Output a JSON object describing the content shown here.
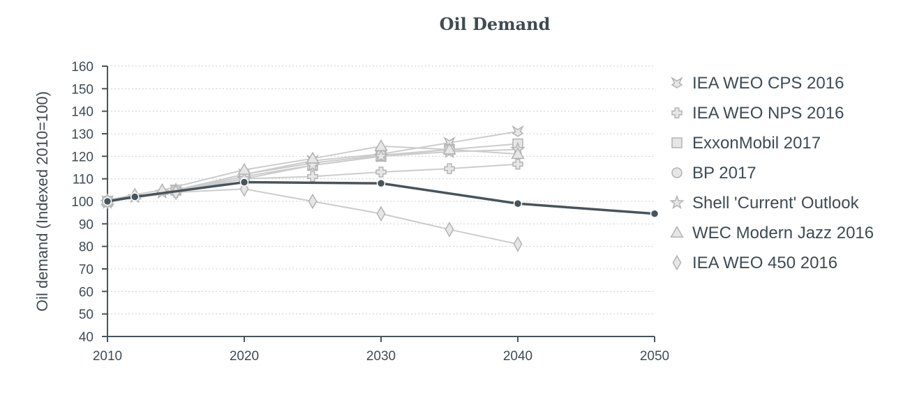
{
  "chart_data": {
    "type": "line",
    "title": "Oil Demand",
    "xlabel": "",
    "ylabel": "Oil demand (Indexed 2010=100)",
    "xlim": [
      2010,
      2050
    ],
    "ylim": [
      40,
      160
    ],
    "x_ticks": [
      2010,
      2020,
      2030,
      2040,
      2050
    ],
    "y_ticks": [
      40,
      50,
      60,
      70,
      80,
      90,
      100,
      110,
      120,
      130,
      140,
      150,
      160
    ],
    "grid": "horizontal dotted",
    "legend_position": "right",
    "colors": {
      "scenario": "#cccccc",
      "scenario_stroke": "#b3b3b3",
      "highlight": "#47545c",
      "axis": "#47545c",
      "grid": "#cfcfcf"
    },
    "series": [
      {
        "name": "IEA WEO CPS 2016",
        "marker": "tie",
        "x": [
          2010,
          2015,
          2020,
          2025,
          2030,
          2035,
          2040
        ],
        "y": [
          100,
          105,
          112,
          118,
          121,
          126,
          131
        ]
      },
      {
        "name": "IEA WEO NPS 2016",
        "marker": "cross",
        "x": [
          2010,
          2015,
          2020,
          2025,
          2030,
          2035,
          2040
        ],
        "y": [
          100,
          104,
          110,
          111,
          113,
          114.5,
          116.5
        ]
      },
      {
        "name": "ExxonMobil 2017",
        "marker": "square",
        "x": [
          2010,
          2015,
          2020,
          2025,
          2030,
          2035,
          2040
        ],
        "y": [
          100,
          105,
          111,
          116,
          120,
          123,
          125.5
        ]
      },
      {
        "name": "BP 2017",
        "marker": "circle",
        "x": [
          2010,
          2015,
          2020,
          2025,
          2030,
          2035
        ],
        "y": [
          100,
          105,
          112,
          117,
          120.5,
          123
        ]
      },
      {
        "name": "Shell 'Current' Outlook",
        "marker": "star",
        "x": [
          2010,
          2012,
          2014,
          2015,
          2020,
          2025,
          2030,
          2035,
          2040
        ],
        "y": [
          99.5,
          102,
          104,
          105,
          110,
          116,
          120,
          122,
          123
        ]
      },
      {
        "name": "WEC Modern Jazz 2016",
        "marker": "triangle",
        "x": [
          2010,
          2012,
          2014,
          2020,
          2025,
          2030,
          2035,
          2040
        ],
        "y": [
          100.5,
          103,
          105,
          114,
          119,
          124.5,
          123,
          121
        ]
      },
      {
        "name": "IEA WEO 450 2016",
        "marker": "diamond",
        "x": [
          2010,
          2015,
          2020,
          2025,
          2030,
          2035,
          2040
        ],
        "y": [
          100,
          104,
          105.5,
          100,
          94.5,
          87.5,
          81
        ]
      },
      {
        "marker": "dot",
        "highlight": true,
        "x": [
          2010,
          2012,
          2020,
          2030,
          2040,
          2050
        ],
        "y": [
          100,
          102,
          108.5,
          108,
          99,
          94.5
        ]
      }
    ]
  }
}
